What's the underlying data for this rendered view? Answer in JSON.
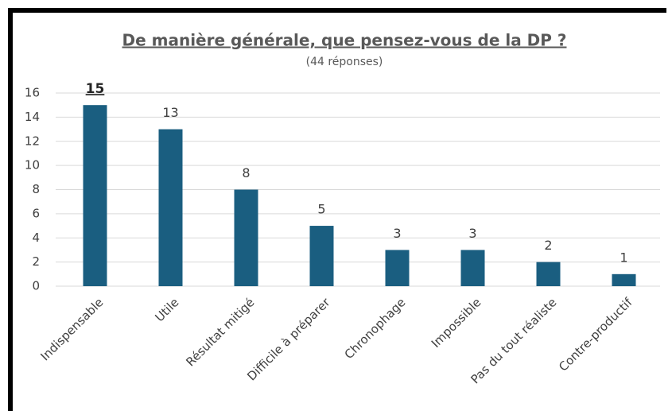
{
  "chart_data": {
    "type": "bar",
    "title": "De manière générale, que pensez-vous de la DP ?",
    "subtitle": "(44 réponses)",
    "categories": [
      "Indispensable",
      "Utile",
      "Résultat mitigé",
      "Difficile à préparer",
      "Chronophage",
      "Impossible",
      "Pas du tout réaliste",
      "Contre-productif"
    ],
    "values": [
      15,
      13,
      8,
      5,
      3,
      3,
      2,
      1
    ],
    "color": "#1a5e80",
    "ylim": [
      0,
      16
    ],
    "yticks": [
      0,
      2,
      4,
      6,
      8,
      10,
      12,
      14,
      16
    ],
    "grid": true
  }
}
